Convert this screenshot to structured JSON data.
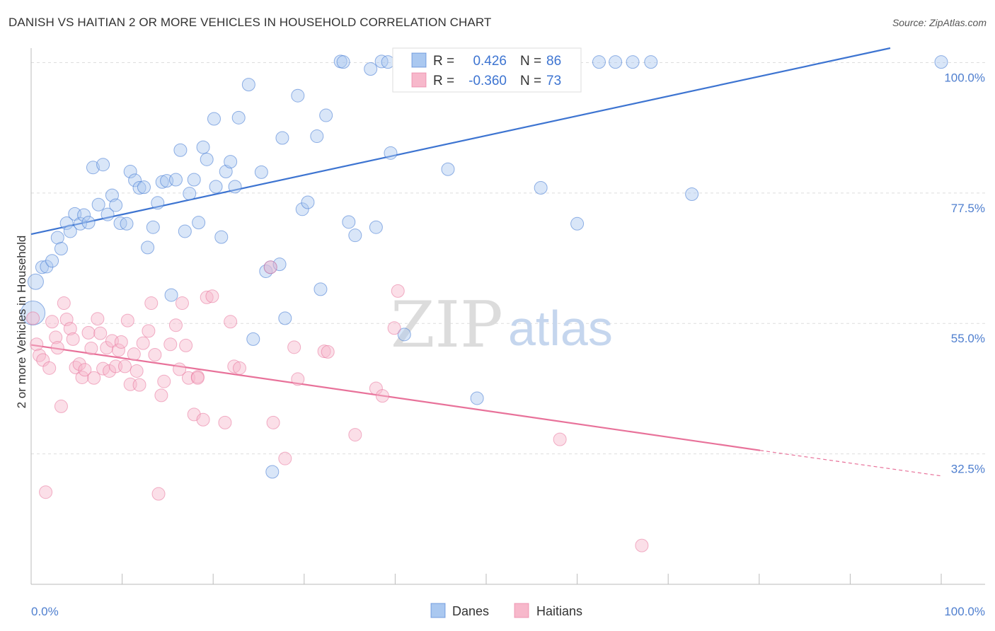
{
  "header": {
    "title": "DANISH VS HAITIAN 2 OR MORE VEHICLES IN HOUSEHOLD CORRELATION CHART",
    "source": "Source: ZipAtlas.com"
  },
  "legend_top": {
    "rows": [
      {
        "r_label": "R =",
        "r_value": "0.426",
        "n_label": "N =",
        "n_value": "86",
        "color": "#aac8f0"
      },
      {
        "r_label": "R =",
        "r_value": "-0.360",
        "n_label": "N =",
        "n_value": "73",
        "color": "#f7b8cb"
      }
    ]
  },
  "legend_bottom": {
    "items": [
      {
        "label": "Danes",
        "color": "#aac8f0"
      },
      {
        "label": "Haitians",
        "color": "#f7b8cb"
      }
    ]
  },
  "watermark": {
    "zip": "ZIP",
    "atlas": "atlas"
  },
  "chart_data": {
    "type": "scatter",
    "title": "DANISH VS HAITIAN 2 OR MORE VEHICLES IN HOUSEHOLD CORRELATION CHART",
    "xlabel": "",
    "ylabel": "2 or more Vehicles in Household",
    "xlim": [
      0,
      100
    ],
    "ylim": [
      10,
      102.5
    ],
    "x_tick_labels": [
      "0.0%",
      "100.0%"
    ],
    "y_ticks": [
      32.5,
      55.0,
      77.5,
      100.0
    ],
    "y_tick_labels": [
      "32.5%",
      "55.0%",
      "77.5%",
      "100.0%"
    ],
    "grid": true,
    "legend_position": "top-center",
    "series": [
      {
        "name": "Danes",
        "color": "#3d74d1",
        "fill": "#aac8f0",
        "trend": {
          "x": [
            0,
            94.4
          ],
          "y": [
            70.4,
            102.5
          ]
        },
        "points": [
          {
            "x": 0.5,
            "y": 62.2
          },
          {
            "x": 1.2,
            "y": 64.7
          },
          {
            "x": 1.7,
            "y": 64.8
          },
          {
            "x": 2.3,
            "y": 65.8
          },
          {
            "x": 2.9,
            "y": 69.8
          },
          {
            "x": 3.3,
            "y": 67.9
          },
          {
            "x": 3.9,
            "y": 72.3
          },
          {
            "x": 4.3,
            "y": 70.9
          },
          {
            "x": 4.8,
            "y": 73.9
          },
          {
            "x": 5.4,
            "y": 72.2
          },
          {
            "x": 5.8,
            "y": 73.7
          },
          {
            "x": 6.3,
            "y": 72.4
          },
          {
            "x": 6.8,
            "y": 81.9
          },
          {
            "x": 7.4,
            "y": 75.5
          },
          {
            "x": 7.9,
            "y": 82.4
          },
          {
            "x": 8.4,
            "y": 73.8
          },
          {
            "x": 8.9,
            "y": 77.1
          },
          {
            "x": 9.3,
            "y": 75.4
          },
          {
            "x": 9.8,
            "y": 72.3
          },
          {
            "x": 10.5,
            "y": 72.2
          },
          {
            "x": 10.9,
            "y": 81.2
          },
          {
            "x": 11.4,
            "y": 79.7
          },
          {
            "x": 11.9,
            "y": 78.4
          },
          {
            "x": 12.4,
            "y": 78.5
          },
          {
            "x": 12.8,
            "y": 68.1
          },
          {
            "x": 13.4,
            "y": 71.6
          },
          {
            "x": 13.9,
            "y": 75.8
          },
          {
            "x": 14.4,
            "y": 79.4
          },
          {
            "x": 14.9,
            "y": 79.6
          },
          {
            "x": 15.4,
            "y": 59.9
          },
          {
            "x": 15.9,
            "y": 79.8
          },
          {
            "x": 16.4,
            "y": 84.9
          },
          {
            "x": 16.9,
            "y": 70.9
          },
          {
            "x": 17.4,
            "y": 77.4
          },
          {
            "x": 17.9,
            "y": 79.8
          },
          {
            "x": 18.4,
            "y": 72.4
          },
          {
            "x": 18.9,
            "y": 85.4
          },
          {
            "x": 19.3,
            "y": 83.3
          },
          {
            "x": 20.1,
            "y": 90.3
          },
          {
            "x": 20.3,
            "y": 78.6
          },
          {
            "x": 20.9,
            "y": 69.9
          },
          {
            "x": 21.4,
            "y": 81.2
          },
          {
            "x": 21.9,
            "y": 82.9
          },
          {
            "x": 22.4,
            "y": 78.6
          },
          {
            "x": 22.8,
            "y": 90.5
          },
          {
            "x": 23.9,
            "y": 96.2
          },
          {
            "x": 24.4,
            "y": 52.3
          },
          {
            "x": 25.3,
            "y": 81.1
          },
          {
            "x": 25.8,
            "y": 64.0
          },
          {
            "x": 26.3,
            "y": 64.7
          },
          {
            "x": 26.5,
            "y": 29.4
          },
          {
            "x": 27.3,
            "y": 65.2
          },
          {
            "x": 27.6,
            "y": 87.0
          },
          {
            "x": 27.9,
            "y": 55.9
          },
          {
            "x": 29.3,
            "y": 94.3
          },
          {
            "x": 29.8,
            "y": 74.7
          },
          {
            "x": 30.4,
            "y": 75.9
          },
          {
            "x": 31.4,
            "y": 87.3
          },
          {
            "x": 31.8,
            "y": 60.9
          },
          {
            "x": 32.4,
            "y": 90.9
          },
          {
            "x": 34.0,
            "y": 100.2
          },
          {
            "x": 34.3,
            "y": 100.1
          },
          {
            "x": 34.9,
            "y": 72.5
          },
          {
            "x": 35.6,
            "y": 70.2
          },
          {
            "x": 37.3,
            "y": 98.9
          },
          {
            "x": 37.9,
            "y": 71.6
          },
          {
            "x": 38.5,
            "y": 100.2
          },
          {
            "x": 39.2,
            "y": 100.1
          },
          {
            "x": 39.5,
            "y": 84.4
          },
          {
            "x": 41.0,
            "y": 53.1
          },
          {
            "x": 45.8,
            "y": 81.6
          },
          {
            "x": 49.0,
            "y": 42.1
          },
          {
            "x": 51.2,
            "y": 100.1
          },
          {
            "x": 52.3,
            "y": 100.0
          },
          {
            "x": 54.2,
            "y": 100.1
          },
          {
            "x": 54.8,
            "y": 100.0
          },
          {
            "x": 56.0,
            "y": 78.4
          },
          {
            "x": 58.2,
            "y": 100.0
          },
          {
            "x": 60.0,
            "y": 72.2
          },
          {
            "x": 62.4,
            "y": 100.1
          },
          {
            "x": 64.2,
            "y": 100.1
          },
          {
            "x": 66.1,
            "y": 100.1
          },
          {
            "x": 68.1,
            "y": 100.1
          },
          {
            "x": 72.6,
            "y": 77.3
          },
          {
            "x": 100.0,
            "y": 100.1
          },
          {
            "x": 0.2,
            "y": 56.8
          }
        ]
      },
      {
        "name": "Haitians",
        "color": "#e8729a",
        "fill": "#f7b8cb",
        "trend": {
          "x": [
            0,
            80.1
          ],
          "y": [
            51.3,
            33.1
          ]
        },
        "trend_dashed": {
          "x": [
            80.1,
            100
          ],
          "y": [
            33.1,
            28.7
          ]
        },
        "points": [
          {
            "x": 0.2,
            "y": 55.9
          },
          {
            "x": 0.6,
            "y": 51.4
          },
          {
            "x": 0.9,
            "y": 49.5
          },
          {
            "x": 1.3,
            "y": 48.7
          },
          {
            "x": 1.6,
            "y": 25.9
          },
          {
            "x": 2.0,
            "y": 47.3
          },
          {
            "x": 2.3,
            "y": 55.3
          },
          {
            "x": 2.7,
            "y": 52.6
          },
          {
            "x": 2.9,
            "y": 50.8
          },
          {
            "x": 3.3,
            "y": 40.7
          },
          {
            "x": 3.6,
            "y": 58.5
          },
          {
            "x": 3.9,
            "y": 55.7
          },
          {
            "x": 4.3,
            "y": 54.1
          },
          {
            "x": 4.6,
            "y": 52.3
          },
          {
            "x": 4.9,
            "y": 47.4
          },
          {
            "x": 5.3,
            "y": 48.0
          },
          {
            "x": 5.6,
            "y": 45.7
          },
          {
            "x": 5.9,
            "y": 47.0
          },
          {
            "x": 6.3,
            "y": 53.4
          },
          {
            "x": 6.6,
            "y": 50.7
          },
          {
            "x": 6.9,
            "y": 45.6
          },
          {
            "x": 7.3,
            "y": 55.8
          },
          {
            "x": 7.6,
            "y": 53.3
          },
          {
            "x": 7.9,
            "y": 47.2
          },
          {
            "x": 8.3,
            "y": 50.8
          },
          {
            "x": 8.6,
            "y": 46.8
          },
          {
            "x": 8.9,
            "y": 52.0
          },
          {
            "x": 9.3,
            "y": 47.6
          },
          {
            "x": 9.6,
            "y": 50.4
          },
          {
            "x": 9.9,
            "y": 51.8
          },
          {
            "x": 10.3,
            "y": 47.6
          },
          {
            "x": 10.6,
            "y": 55.5
          },
          {
            "x": 10.9,
            "y": 44.5
          },
          {
            "x": 11.3,
            "y": 49.7
          },
          {
            "x": 11.6,
            "y": 46.8
          },
          {
            "x": 11.9,
            "y": 44.4
          },
          {
            "x": 12.9,
            "y": 53.7
          },
          {
            "x": 13.2,
            "y": 58.5
          },
          {
            "x": 13.6,
            "y": 49.6
          },
          {
            "x": 14.0,
            "y": 25.6
          },
          {
            "x": 14.3,
            "y": 42.6
          },
          {
            "x": 14.6,
            "y": 45.0
          },
          {
            "x": 15.3,
            "y": 51.4
          },
          {
            "x": 15.9,
            "y": 54.7
          },
          {
            "x": 16.3,
            "y": 47.1
          },
          {
            "x": 16.6,
            "y": 58.5
          },
          {
            "x": 17.0,
            "y": 51.2
          },
          {
            "x": 17.3,
            "y": 45.6
          },
          {
            "x": 17.9,
            "y": 39.3
          },
          {
            "x": 18.3,
            "y": 45.8
          },
          {
            "x": 18.9,
            "y": 38.4
          },
          {
            "x": 19.3,
            "y": 59.5
          },
          {
            "x": 19.9,
            "y": 59.7
          },
          {
            "x": 21.3,
            "y": 37.9
          },
          {
            "x": 21.9,
            "y": 55.3
          },
          {
            "x": 22.3,
            "y": 47.6
          },
          {
            "x": 22.9,
            "y": 47.3
          },
          {
            "x": 26.3,
            "y": 64.7
          },
          {
            "x": 26.6,
            "y": 37.9
          },
          {
            "x": 27.9,
            "y": 31.7
          },
          {
            "x": 28.9,
            "y": 50.9
          },
          {
            "x": 29.3,
            "y": 45.4
          },
          {
            "x": 32.2,
            "y": 50.2
          },
          {
            "x": 32.6,
            "y": 50.1
          },
          {
            "x": 35.6,
            "y": 35.8
          },
          {
            "x": 37.9,
            "y": 43.8
          },
          {
            "x": 38.6,
            "y": 42.5
          },
          {
            "x": 39.9,
            "y": 54.2
          },
          {
            "x": 40.3,
            "y": 60.6
          },
          {
            "x": 58.1,
            "y": 35.0
          },
          {
            "x": 67.1,
            "y": 16.7
          },
          {
            "x": 12.3,
            "y": 51.6
          },
          {
            "x": 18.3,
            "y": 45.6
          }
        ]
      }
    ]
  }
}
